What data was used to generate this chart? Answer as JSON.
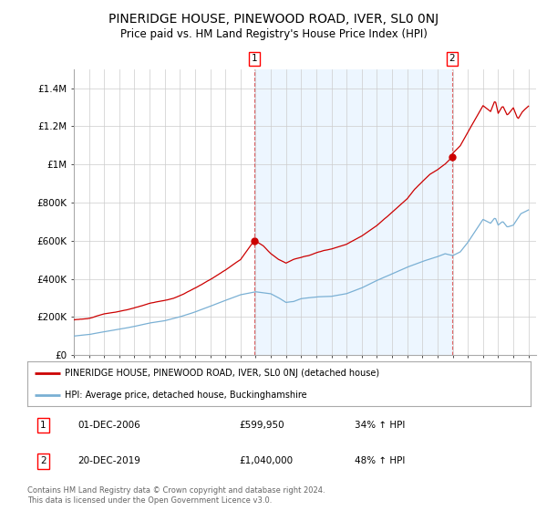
{
  "title": "PINERIDGE HOUSE, PINEWOOD ROAD, IVER, SL0 0NJ",
  "subtitle": "Price paid vs. HM Land Registry's House Price Index (HPI)",
  "title_fontsize": 10,
  "subtitle_fontsize": 8.5,
  "background_color": "#ffffff",
  "grid_color": "#cccccc",
  "fill_color": "#ddeeff",
  "ylim": [
    0,
    1500000
  ],
  "xlim_start": 1995.0,
  "xlim_end": 2025.5,
  "yticks": [
    0,
    200000,
    400000,
    600000,
    800000,
    1000000,
    1200000,
    1400000
  ],
  "ytick_labels": [
    "£0",
    "£200K",
    "£400K",
    "£600K",
    "£800K",
    "£1M",
    "£1.2M",
    "£1.4M"
  ],
  "red_color": "#cc0000",
  "blue_color": "#7ab0d4",
  "point1_x": 2006.9167,
  "point1_y": 599950,
  "point2_x": 2019.9583,
  "point2_y": 1040000,
  "legend_line1": "PINERIDGE HOUSE, PINEWOOD ROAD, IVER, SL0 0NJ (detached house)",
  "legend_line2": "HPI: Average price, detached house, Buckinghamshire",
  "annotation1_date": "01-DEC-2006",
  "annotation1_price": "£599,950",
  "annotation1_hpi": "34% ↑ HPI",
  "annotation2_date": "20-DEC-2019",
  "annotation2_price": "£1,040,000",
  "annotation2_hpi": "48% ↑ HPI",
  "footer": "Contains HM Land Registry data © Crown copyright and database right 2024.\nThis data is licensed under the Open Government Licence v3.0."
}
